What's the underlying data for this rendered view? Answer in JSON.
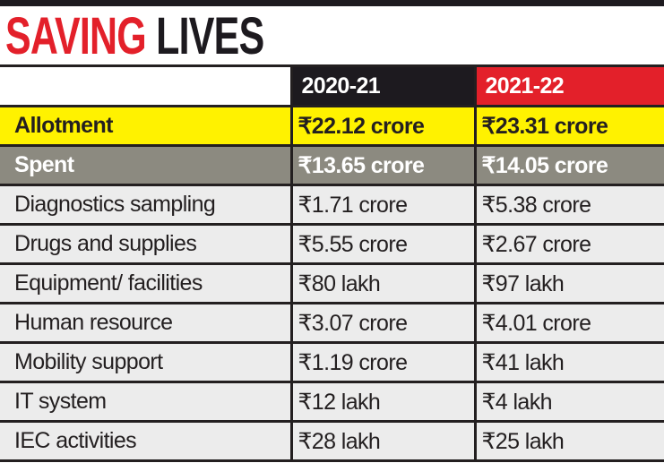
{
  "title": {
    "part1": "SAVING",
    "part2": "LIVES"
  },
  "columns": [
    "",
    "2020-21",
    "2021-22"
  ],
  "allotment": {
    "label": "Allotment",
    "y2020_21": "₹22.12 crore",
    "y2021_22": "₹23.31 crore"
  },
  "spent": {
    "label": "Spent",
    "y2020_21": "₹13.65  crore",
    "y2021_22": "₹14.05 crore"
  },
  "rows": [
    {
      "label": "Diagnostics sampling",
      "y2020_21": "₹1.71 crore",
      "y2021_22": "₹5.38 crore"
    },
    {
      "label": "Drugs and supplies",
      "y2020_21": "₹5.55 crore",
      "y2021_22": "₹2.67 crore"
    },
    {
      "label": "Equipment/ facilities",
      "y2020_21": "₹80 lakh",
      "y2021_22": "₹97 lakh"
    },
    {
      "label": "Human resource",
      "y2020_21": "₹3.07 crore",
      "y2021_22": "₹4.01 crore"
    },
    {
      "label": "Mobility support",
      "y2020_21": "₹1.19 crore",
      "y2021_22": "₹41 lakh"
    },
    {
      "label": "IT system",
      "y2020_21": "₹12 lakh",
      "y2021_22": "₹4 lakh"
    },
    {
      "label": "IEC activities",
      "y2020_21": "₹28 lakh",
      "y2021_22": "₹25 lakh"
    }
  ],
  "colors": {
    "red": "#e3202a",
    "dark": "#1d1a1f",
    "yellow": "#fff200",
    "gray": "#8c8a80",
    "row": "#ececec"
  }
}
